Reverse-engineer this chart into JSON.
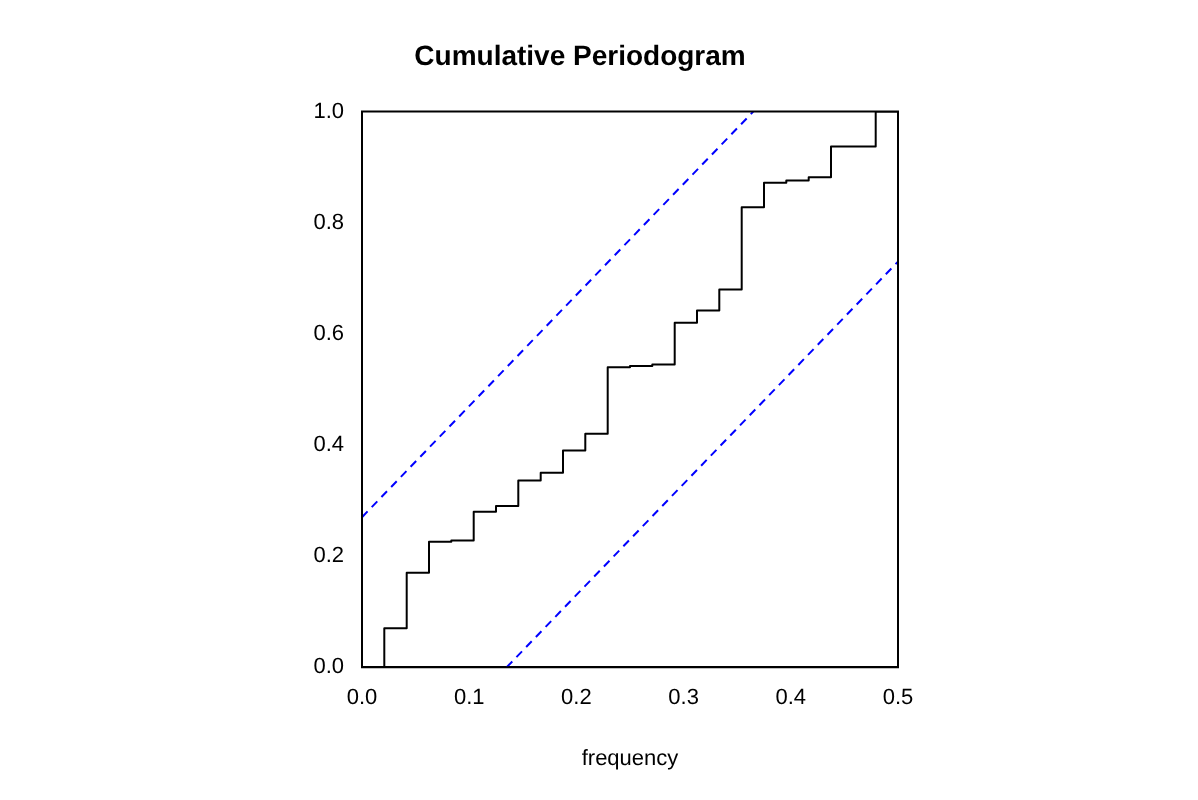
{
  "chart_data": {
    "type": "step",
    "title": "Cumulative Periodogram",
    "xlabel": "frequency",
    "xlim": [
      0,
      0.5
    ],
    "xticks": [
      {
        "value": 0,
        "label": "0.0"
      },
      0.1,
      0.2,
      0.3,
      0.4,
      0.5
    ],
    "ylim": [
      0,
      1
    ],
    "yticks": [
      {
        "value": 0,
        "label": "0.0"
      },
      0.2,
      0.4,
      0.6,
      0.8,
      {
        "value": 1,
        "label": "1.0"
      }
    ],
    "grid": false,
    "legend": false,
    "series": [
      {
        "color": "#000000",
        "line_style": "solid",
        "x": [
          0.0208,
          0.0208,
          0.0417,
          0.0625,
          0.0833,
          0.1042,
          0.125,
          0.1458,
          0.1667,
          0.1875,
          0.2083,
          0.2292,
          0.25,
          0.2708,
          0.2917,
          0.3125,
          0.3333,
          0.3542,
          0.375,
          0.3958,
          0.4167,
          0.4375,
          0.4583,
          0.4792,
          0.5
        ],
        "values": [
          0,
          0.07,
          0.17,
          0.226,
          0.228,
          0.28,
          0.29,
          0.336,
          0.35,
          0.39,
          0.42,
          0.54,
          0.542,
          0.545,
          0.62,
          0.642,
          0.68,
          0.828,
          0.872,
          0.876,
          0.882,
          0.937,
          0.937,
          1,
          1
        ]
      },
      {
        "type": "line",
        "color": "#0000ff",
        "line_style": "dashed",
        "x": [
          0,
          0.365
        ],
        "values": [
          0.27,
          1
        ]
      },
      {
        "type": "line",
        "color": "#0000ff",
        "line_style": "dashed",
        "x": [
          0.135,
          0.5
        ],
        "values": [
          0,
          0.73
        ]
      }
    ]
  }
}
